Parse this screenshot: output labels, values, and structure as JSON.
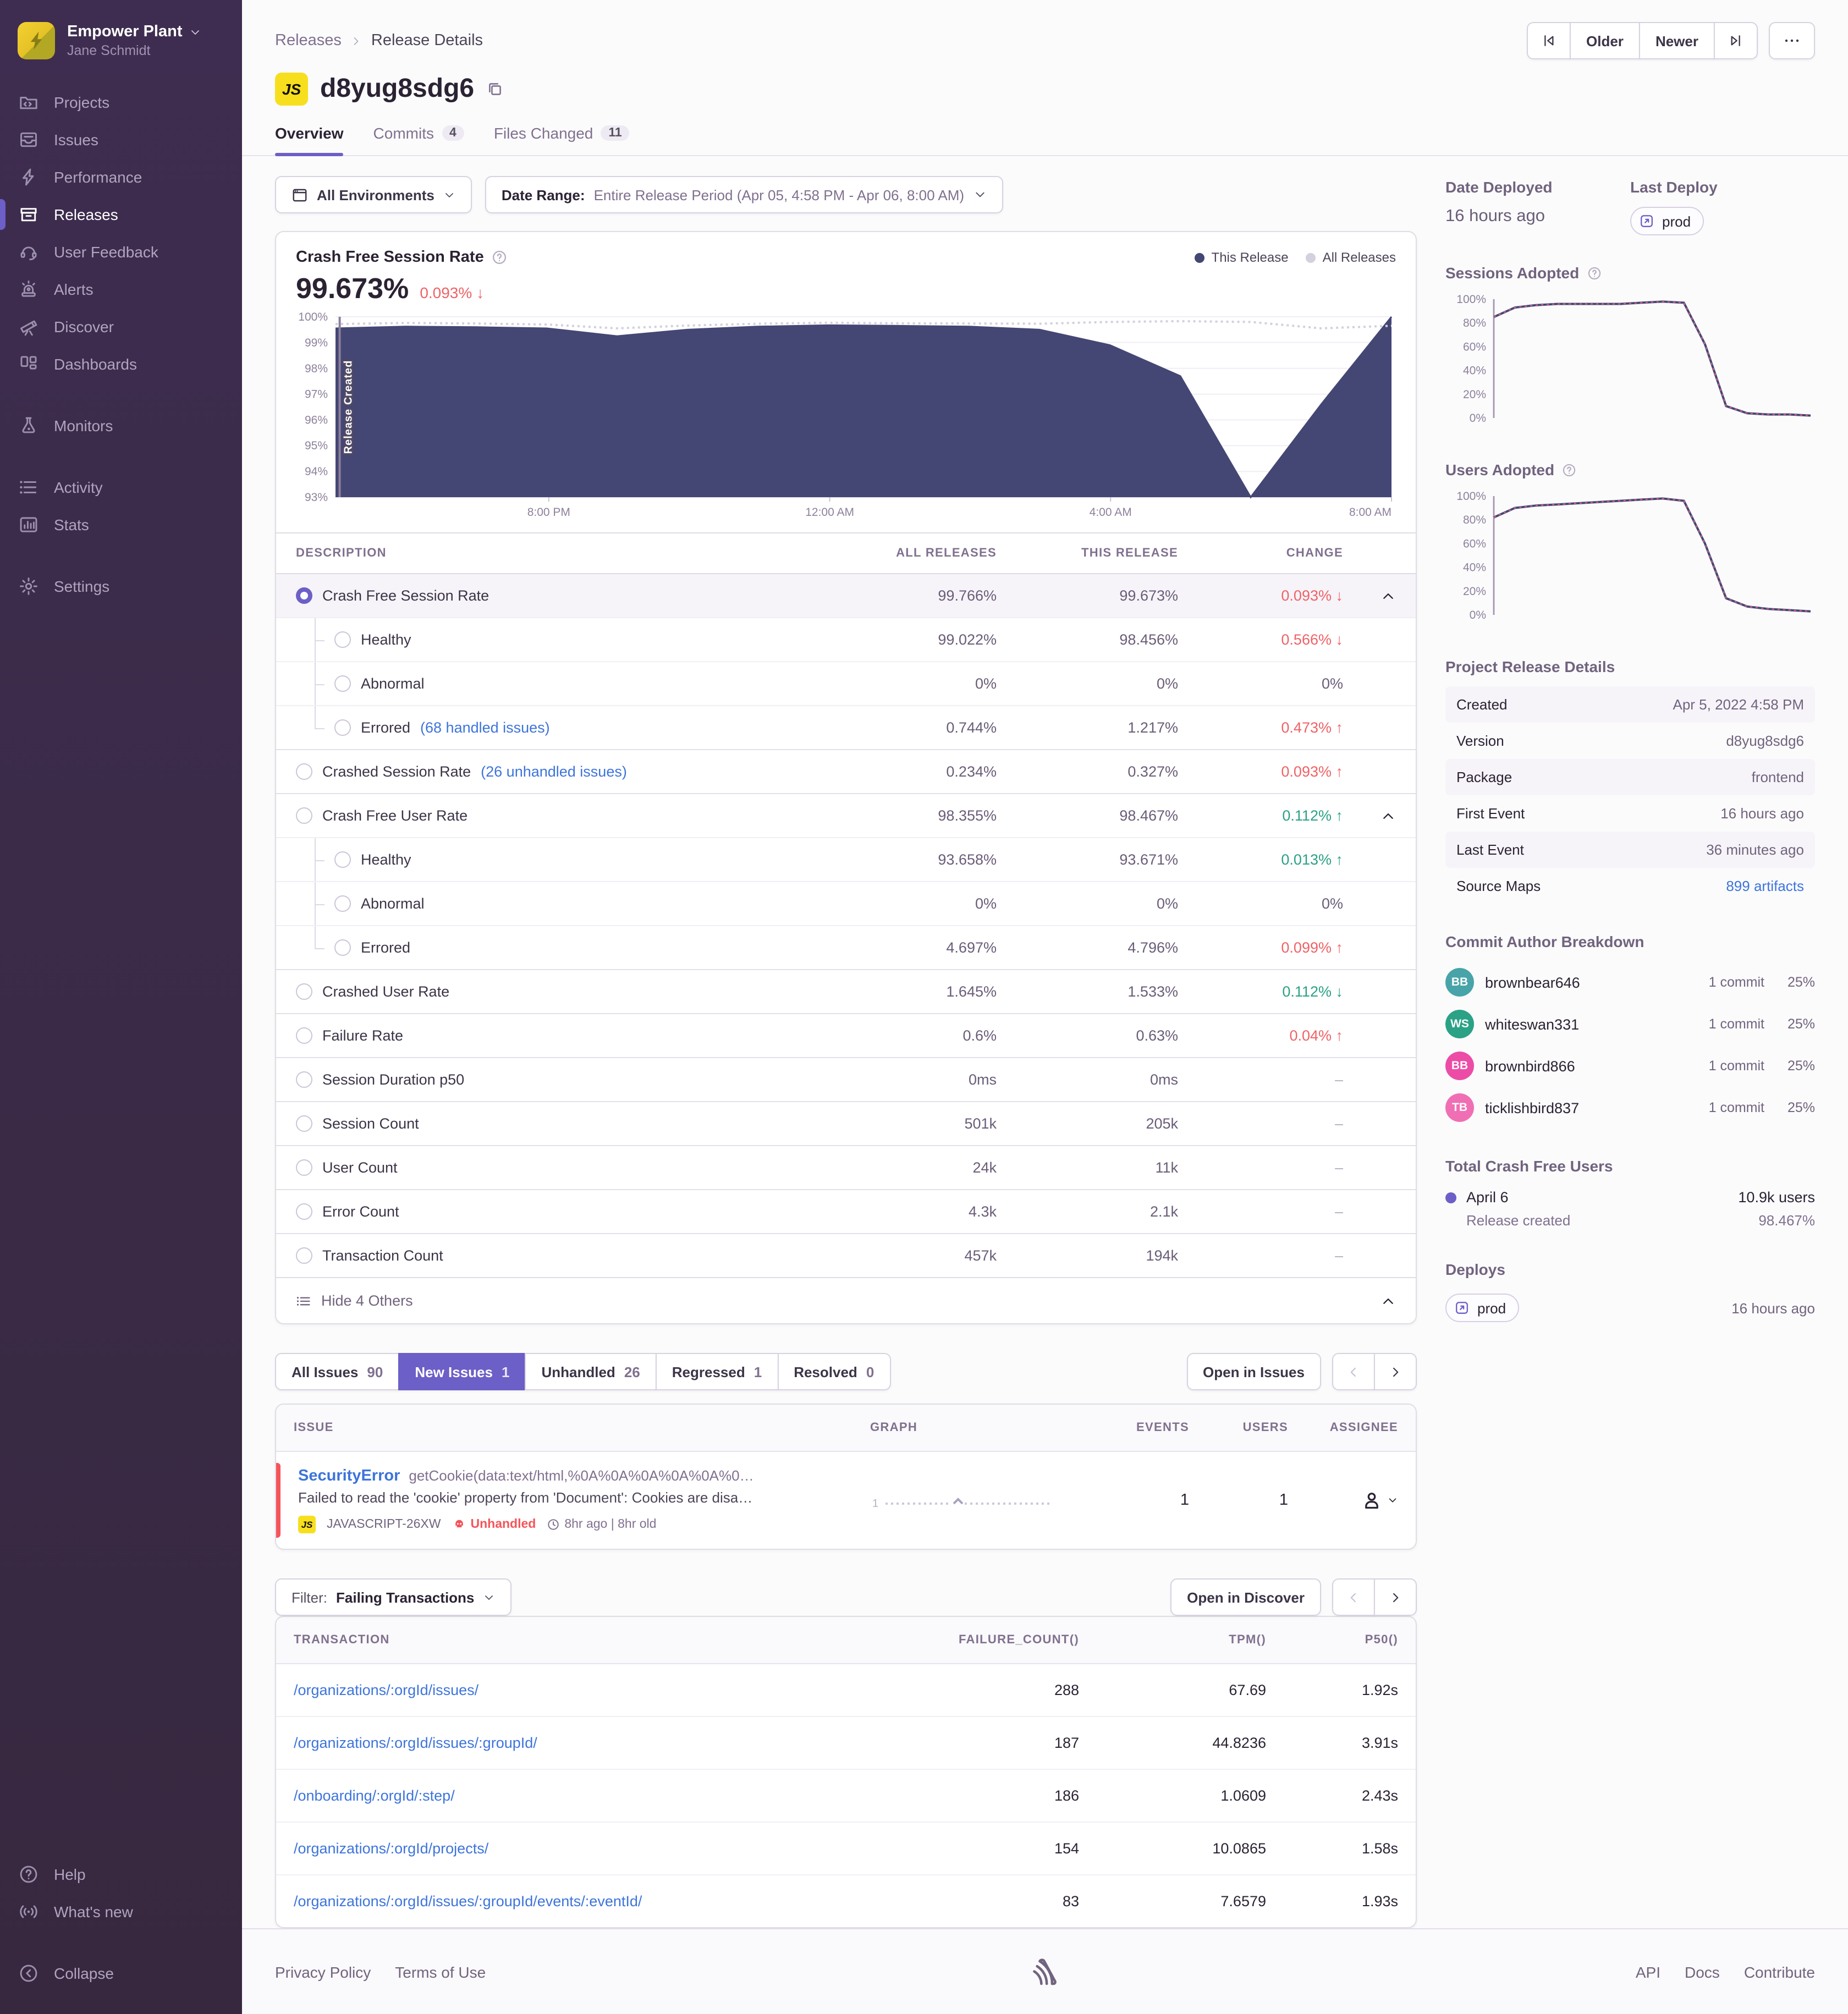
{
  "colors": {
    "accent": "#6c5fc7",
    "chart_primary": "#444674",
    "chart_secondary": "#d4d0dd",
    "negative": "#ef6266",
    "positive": "#2ba185",
    "platform_yellow": "#f7df1e",
    "unhandled_red": "#f55459",
    "link_blue": "#3d74db"
  },
  "sidebar": {
    "org": "Empower Plant",
    "user": "Jane Schmidt",
    "groups": [
      [
        {
          "icon": "projects",
          "label": "Projects"
        },
        {
          "icon": "issues",
          "label": "Issues"
        },
        {
          "icon": "performance",
          "label": "Performance"
        },
        {
          "icon": "releases",
          "label": "Releases",
          "active": true
        },
        {
          "icon": "user-feedback",
          "label": "User Feedback"
        },
        {
          "icon": "alerts",
          "label": "Alerts"
        },
        {
          "icon": "discover",
          "label": "Discover"
        },
        {
          "icon": "dashboards",
          "label": "Dashboards"
        }
      ],
      [
        {
          "icon": "monitors",
          "label": "Monitors"
        }
      ],
      [
        {
          "icon": "activity",
          "label": "Activity"
        },
        {
          "icon": "stats",
          "label": "Stats"
        }
      ],
      [
        {
          "icon": "settings",
          "label": "Settings"
        }
      ]
    ],
    "footer_groups": [
      [
        {
          "icon": "help",
          "label": "Help"
        },
        {
          "icon": "whats-new",
          "label": "What's new"
        }
      ],
      [
        {
          "icon": "collapse",
          "label": "Collapse"
        }
      ]
    ]
  },
  "header": {
    "breadcrumb": [
      "Releases",
      "Release Details"
    ],
    "pagination": {
      "older": "Older",
      "newer": "Newer"
    },
    "platform_badge": "JS",
    "title": "d8yug8sdg6",
    "tabs": [
      {
        "label": "Overview",
        "active": true
      },
      {
        "label": "Commits",
        "count": "4"
      },
      {
        "label": "Files Changed",
        "count": "11"
      }
    ]
  },
  "filters": {
    "environments": "All Environments",
    "date_range_label": "Date Range:",
    "date_range_value": "Entire Release Period (Apr 05, 4:58 PM - Apr 06, 8:00 AM)"
  },
  "chart_data": [
    {
      "id": "crash-free-session-rate",
      "type": "area",
      "title": "Crash Free Session Rate",
      "big_value": "99.673%",
      "big_change": "0.093%",
      "change_arrow": "↓",
      "change_dir": "down",
      "legend": [
        "This Release",
        "All Releases"
      ],
      "legend_position": "top-right",
      "grid": true,
      "baseline": true,
      "annotation": "Release Created",
      "ylim": [
        93,
        100
      ],
      "yticks": [
        "100%",
        "99%",
        "98%",
        "97%",
        "96%",
        "95%",
        "94%",
        "93%"
      ],
      "x": [
        "5 PM",
        "6 PM",
        "7 PM",
        "8 PM",
        "9 PM",
        "10 PM",
        "11 PM",
        "12 AM",
        "1 AM",
        "2 AM",
        "3 AM",
        "4 AM",
        "5 AM",
        "6 AM",
        "7 AM",
        "8 AM"
      ],
      "xticks": [
        "8:00 PM",
        "12:00 AM",
        "4:00 AM",
        "8:00 AM"
      ],
      "xtick_pos": [
        0.202,
        0.468,
        0.734,
        1
      ],
      "padding": {
        "l": 40,
        "r": 4,
        "t": 6,
        "b": 26
      },
      "series": [
        {
          "name": "This Release",
          "color": "#444674",
          "area": true,
          "width": 1.5,
          "values": [
            99.55,
            99.62,
            99.6,
            99.55,
            99.25,
            99.5,
            99.62,
            99.67,
            99.65,
            99.62,
            99.5,
            98.9,
            97.7,
            93.0,
            96.6,
            100.0
          ]
        },
        {
          "name": "All Releases",
          "color": "#d4d0dd",
          "dashed": true,
          "width": 2,
          "values": [
            99.72,
            99.76,
            99.74,
            99.7,
            99.55,
            99.66,
            99.73,
            99.77,
            99.75,
            99.74,
            99.73,
            99.8,
            99.83,
            99.8,
            99.55,
            99.65
          ]
        }
      ]
    },
    {
      "id": "sessions-adopted",
      "type": "line",
      "title": "Sessions Adopted",
      "grid": false,
      "axis_line": true,
      "ylim": [
        0,
        100
      ],
      "yticks": [
        "100%",
        "80%",
        "60%",
        "40%",
        "20%",
        "0%"
      ],
      "padding": {
        "l": 44,
        "r": 4,
        "t": 6,
        "b": 8
      },
      "series": [
        {
          "name": "This Release",
          "color": "#444674",
          "width": 2,
          "values": [
            85,
            93,
            95,
            96,
            96,
            96,
            96,
            97,
            98,
            97,
            62,
            10,
            4,
            3,
            3,
            2
          ]
        },
        {
          "name": "All Releases",
          "color": "#e2647e",
          "dashed": true,
          "width": 1,
          "values": [
            85,
            93,
            95,
            96,
            96,
            96,
            96,
            97,
            98,
            97,
            62,
            10,
            4,
            3,
            3,
            2
          ]
        }
      ]
    },
    {
      "id": "users-adopted",
      "type": "line",
      "title": "Users Adopted",
      "grid": false,
      "axis_line": true,
      "ylim": [
        0,
        100
      ],
      "yticks": [
        "100%",
        "80%",
        "60%",
        "40%",
        "20%",
        "0%"
      ],
      "padding": {
        "l": 44,
        "r": 4,
        "t": 6,
        "b": 8
      },
      "series": [
        {
          "name": "This Release",
          "color": "#444674",
          "width": 2,
          "values": [
            82,
            90,
            92,
            93,
            94,
            95,
            96,
            97,
            98,
            96,
            60,
            14,
            7,
            5,
            4,
            3
          ]
        },
        {
          "name": "All Releases",
          "color": "#e2647e",
          "dashed": true,
          "width": 1,
          "values": [
            82,
            90,
            92,
            93,
            94,
            95,
            96,
            97,
            98,
            96,
            60,
            14,
            7,
            5,
            4,
            3
          ]
        }
      ]
    }
  ],
  "metrics_table": {
    "columns": [
      "DESCRIPTION",
      "ALL RELEASES",
      "THIS RELEASE",
      "CHANGE"
    ],
    "rows": [
      {
        "label": "Crash Free Session Rate",
        "all": "99.766%",
        "this": "99.673%",
        "change": "0.093%",
        "arrow": "↓",
        "tone": "bad",
        "level": 0,
        "radio": "on",
        "selected": true,
        "chevron": true
      },
      {
        "label": "Healthy",
        "all": "99.022%",
        "this": "98.456%",
        "change": "0.566%",
        "arrow": "↓",
        "tone": "bad",
        "level": 1
      },
      {
        "label": "Abnormal",
        "all": "0%",
        "this": "0%",
        "change": "0%",
        "tone": "neu",
        "level": 1
      },
      {
        "label": "Errored",
        "link": "(68 handled issues)",
        "all": "0.744%",
        "this": "1.217%",
        "change": "0.473%",
        "arrow": "↑",
        "tone": "bad",
        "level": 1,
        "last": true
      },
      {
        "label": "Crashed Session Rate",
        "link": "(26 unhandled issues)",
        "all": "0.234%",
        "this": "0.327%",
        "change": "0.093%",
        "arrow": "↑",
        "tone": "bad",
        "level": 0,
        "group": true
      },
      {
        "label": "Crash Free User Rate",
        "all": "98.355%",
        "this": "98.467%",
        "change": "0.112%",
        "arrow": "↑",
        "tone": "good",
        "level": 0,
        "chevron": true,
        "group": true
      },
      {
        "label": "Healthy",
        "all": "93.658%",
        "this": "93.671%",
        "change": "0.013%",
        "arrow": "↑",
        "tone": "good",
        "level": 1
      },
      {
        "label": "Abnormal",
        "all": "0%",
        "this": "0%",
        "change": "0%",
        "tone": "neu",
        "level": 1
      },
      {
        "label": "Errored",
        "all": "4.697%",
        "this": "4.796%",
        "change": "0.099%",
        "arrow": "↑",
        "tone": "bad",
        "level": 1,
        "last": true
      },
      {
        "label": "Crashed User Rate",
        "all": "1.645%",
        "this": "1.533%",
        "change": "0.112%",
        "arrow": "↓",
        "tone": "good",
        "level": 0,
        "group": true
      },
      {
        "label": "Failure Rate",
        "all": "0.6%",
        "this": "0.63%",
        "change": "0.04%",
        "arrow": "↑",
        "tone": "bad",
        "level": 0,
        "group": true
      },
      {
        "label": "Session Duration p50",
        "all": "0ms",
        "this": "0ms",
        "change": "–",
        "tone": "mut",
        "level": 0,
        "group": true
      },
      {
        "label": "Session Count",
        "all": "501k",
        "this": "205k",
        "change": "–",
        "tone": "mut",
        "level": 0,
        "group": true
      },
      {
        "label": "User Count",
        "all": "24k",
        "this": "11k",
        "change": "–",
        "tone": "mut",
        "level": 0,
        "group": true
      },
      {
        "label": "Error Count",
        "all": "4.3k",
        "this": "2.1k",
        "change": "–",
        "tone": "mut",
        "level": 0,
        "group": true
      },
      {
        "label": "Transaction Count",
        "all": "457k",
        "this": "194k",
        "change": "–",
        "tone": "mut",
        "level": 0,
        "group": true
      }
    ],
    "footer": "Hide 4 Others"
  },
  "issues_section": {
    "tabs": [
      {
        "label": "All Issues",
        "count": "90"
      },
      {
        "label": "New Issues",
        "count": "1",
        "active": true
      },
      {
        "label": "Unhandled",
        "count": "26"
      },
      {
        "label": "Regressed",
        "count": "1"
      },
      {
        "label": "Resolved",
        "count": "0"
      }
    ],
    "open_button": "Open in Issues",
    "columns": [
      "ISSUE",
      "GRAPH",
      "EVENTS",
      "USERS",
      "ASSIGNEE"
    ],
    "issue": {
      "title": "SecurityError",
      "subtitle": "getCookie(data:text/html,%0A%0A%0A%0A%0A%0…",
      "message": "Failed to read the 'cookie' property from 'Document': Cookies are disa…",
      "platform_badge": "JS",
      "short_id": "JAVASCRIPT-26XW",
      "unhandled_label": "Unhandled",
      "age": "8hr ago | 8hr old",
      "graph_label": "1",
      "events": "1",
      "users": "1"
    }
  },
  "transactions_section": {
    "filter_label": "Filter:",
    "filter_value": "Failing Transactions",
    "open_button": "Open in Discover",
    "columns": [
      "TRANSACTION",
      "FAILURE_COUNT()",
      "TPM()",
      "P50()"
    ],
    "rows": [
      {
        "transaction": "/organizations/:orgId/issues/",
        "failure_count": "288",
        "tpm": "67.69",
        "p50": "1.92s"
      },
      {
        "transaction": "/organizations/:orgId/issues/:groupId/",
        "failure_count": "187",
        "tpm": "44.8236",
        "p50": "3.91s"
      },
      {
        "transaction": "/onboarding/:orgId/:step/",
        "failure_count": "186",
        "tpm": "1.0609",
        "p50": "2.43s"
      },
      {
        "transaction": "/organizations/:orgId/projects/",
        "failure_count": "154",
        "tpm": "10.0865",
        "p50": "1.58s"
      },
      {
        "transaction": "/organizations/:orgId/issues/:groupId/events/:eventId/",
        "failure_count": "83",
        "tpm": "7.6579",
        "p50": "1.93s"
      }
    ]
  },
  "aside": {
    "date_deployed_label": "Date Deployed",
    "date_deployed_value": "16 hours ago",
    "last_deploy_label": "Last Deploy",
    "deploy_env": "prod",
    "details_title": "Project Release Details",
    "details": [
      {
        "label": "Created",
        "value": "Apr 5, 2022 4:58 PM"
      },
      {
        "label": "Version",
        "value": "d8yug8sdg6"
      },
      {
        "label": "Package",
        "value": "frontend"
      },
      {
        "label": "First Event",
        "value": "16 hours ago"
      },
      {
        "label": "Last Event",
        "value": "36 minutes ago"
      },
      {
        "label": "Source Maps",
        "value": "899 artifacts",
        "link": true
      }
    ],
    "authors_title": "Commit Author Breakdown",
    "authors": [
      {
        "initials": "BB",
        "name": "brownbear646",
        "commits": "1 commit",
        "pct": "25%",
        "color": "#48a4a8"
      },
      {
        "initials": "WS",
        "name": "whiteswan331",
        "commits": "1 commit",
        "pct": "25%",
        "color": "#2ba185"
      },
      {
        "initials": "BB",
        "name": "brownbird866",
        "commits": "1 commit",
        "pct": "25%",
        "color": "#ec4ca6"
      },
      {
        "initials": "TB",
        "name": "ticklishbird837",
        "commits": "1 commit",
        "pct": "25%",
        "color": "#f06fb4"
      }
    ],
    "crash_free_title": "Total Crash Free Users",
    "crash_free_rows": [
      {
        "label": "April 6",
        "value": "10.9k users",
        "dot": true
      },
      {
        "label": "Release created",
        "value": "98.467%",
        "muted": true
      }
    ],
    "deploys_title": "Deploys",
    "deploys": [
      {
        "env": "prod",
        "when": "16 hours ago"
      }
    ]
  },
  "footer": {
    "left": [
      "Privacy Policy",
      "Terms of Use"
    ],
    "right": [
      "API",
      "Docs",
      "Contribute"
    ]
  }
}
